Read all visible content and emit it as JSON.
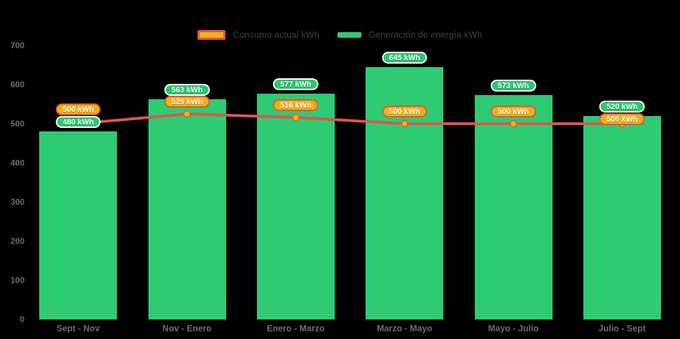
{
  "colors": {
    "background": "#000000",
    "bar_green": "#2ecb72",
    "line_red": "#e0544b",
    "marker_gold": "#f2b50f",
    "pill_orange_bg": "#f0b211",
    "pill_orange_border": "#e0544b",
    "pill_green_bg": "#2bc76e",
    "pill_green_border": "#ffffff",
    "axis_text": "#6a6c6e",
    "legend_text": "#3b4143"
  },
  "legend": {
    "consumo": {
      "label": "Consumo actual kWh",
      "swatch_fill": "#f0b211",
      "swatch_border": "#e0544b"
    },
    "generacion": {
      "label": "Generación de energía kWh",
      "swatch_fill": "#2ecb72"
    }
  },
  "chart_data": {
    "type": "bar",
    "subtype": "bar-with-line-overlay",
    "categories": [
      "Sept - Nov",
      "Nov - Enero",
      "Enero - Marzo",
      "Marzo - Mayo",
      "Mayo - Julio",
      "Julio - Sept"
    ],
    "series": [
      {
        "name": "Consumo actual kWh",
        "type": "line",
        "values": [
          500,
          525,
          516,
          500,
          500,
          500
        ],
        "labels": [
          "500 kWh",
          "525 kWh",
          "516 kWh",
          "500 kWh",
          "500 kWh",
          "500 kWh"
        ],
        "color": "#e0544b"
      },
      {
        "name": "Generación de energía kWh",
        "type": "bar",
        "values": [
          480,
          563,
          577,
          645,
          573,
          520
        ],
        "labels": [
          "480 kWh",
          "563 kWh",
          "577 kWh",
          "645 kWh",
          "573 kWh",
          "520 kWh"
        ],
        "color": "#2ecb72"
      }
    ],
    "label_suffix": " kWh",
    "title": "",
    "xlabel": "",
    "ylabel": "",
    "ylim": [
      0,
      700
    ],
    "y_ticks": [
      "0",
      "100",
      "200",
      "300",
      "400",
      "500",
      "600",
      "700"
    ],
    "grid": false,
    "legend_position": "top"
  }
}
